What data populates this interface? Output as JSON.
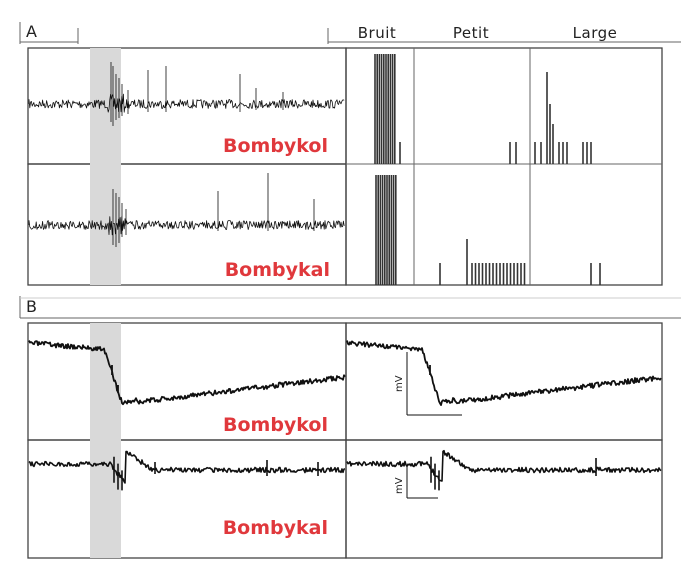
{
  "panel_a": {
    "letter": "A",
    "column_headers": [
      "Bruit",
      "Petit",
      "Large"
    ],
    "rows": [
      {
        "odor": "Bombykol"
      },
      {
        "odor": "Bombykal"
      }
    ]
  },
  "panel_b": {
    "letter": "B",
    "unit_label": "mV",
    "rows": [
      {
        "odor": "Bombykol"
      },
      {
        "odor": "Bombykal"
      }
    ]
  },
  "colors": {
    "odor_label": "#e0383c",
    "stimulus_band": "#d9d9d9",
    "trace": "#111111"
  }
}
